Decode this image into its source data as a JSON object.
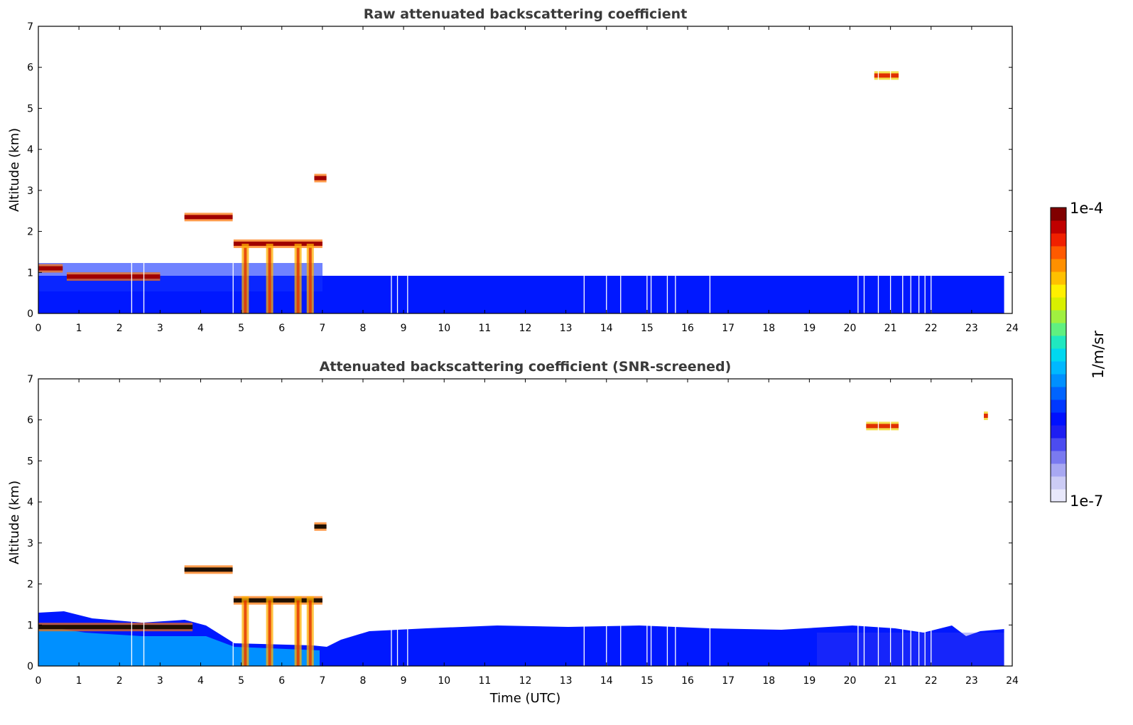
{
  "chart_data": [
    {
      "type": "heatmap",
      "title": "Raw attenuated backscattering coefficient",
      "xlabel": "",
      "ylabel": "Altitude (km)",
      "xlim": [
        0,
        24
      ],
      "ylim": [
        0,
        7
      ],
      "xticks": [
        "0",
        "1",
        "2",
        "3",
        "4",
        "5",
        "6",
        "7",
        "8",
        "9",
        "10",
        "11",
        "12",
        "13",
        "14",
        "15",
        "16",
        "17",
        "18",
        "19",
        "20",
        "21",
        "22",
        "23",
        "24"
      ],
      "yticks": [
        "0",
        "1",
        "2",
        "3",
        "4",
        "5",
        "6",
        "7"
      ],
      "data_end_time": 23.8,
      "features": [
        {
          "kind": "boundary_layer",
          "time_range": [
            0,
            23.8
          ],
          "top_km": 0.9,
          "value": "~3e-7"
        },
        {
          "kind": "cloud_layer",
          "time_range": [
            0,
            0.6
          ],
          "altitude_km": 1.1,
          "value": "~1e-4"
        },
        {
          "kind": "cloud_layer",
          "time_range": [
            0.7,
            3.0
          ],
          "altitude_km": 0.9,
          "value": "~1e-4"
        },
        {
          "kind": "cloud_layer",
          "time_range": [
            3.6,
            4.8
          ],
          "altitude_km": 2.35,
          "value": "~1e-4"
        },
        {
          "kind": "cloud_layer",
          "time_range": [
            4.8,
            7.0
          ],
          "altitude_km": 1.7,
          "value": "~1e-4"
        },
        {
          "kind": "cloud_layer",
          "time_range": [
            6.8,
            7.1
          ],
          "altitude_km": 3.3,
          "value": "~1e-4"
        },
        {
          "kind": "cloud_layer",
          "time_range": [
            20.6,
            21.2
          ],
          "altitude_km": 5.8,
          "value": "~5e-5"
        }
      ]
    },
    {
      "type": "heatmap",
      "title": "Attenuated backscattering coefficient (SNR-screened)",
      "xlabel": "Time (UTC)",
      "ylabel": "Altitude (km)",
      "xlim": [
        0,
        24
      ],
      "ylim": [
        0,
        7
      ],
      "xticks": [
        "0",
        "1",
        "2",
        "3",
        "4",
        "5",
        "6",
        "7",
        "8",
        "9",
        "10",
        "11",
        "12",
        "13",
        "14",
        "15",
        "16",
        "17",
        "18",
        "19",
        "20",
        "21",
        "22",
        "23",
        "24"
      ],
      "yticks": [
        "0",
        "1",
        "2",
        "3",
        "4",
        "5",
        "6",
        "7"
      ],
      "data_end_time": 23.8,
      "features": [
        {
          "kind": "boundary_layer",
          "time_range": [
            0,
            23.8
          ],
          "top_km": 0.85,
          "value": "~3e-7"
        },
        {
          "kind": "cloud_layer",
          "time_range": [
            0,
            3.8
          ],
          "altitude_km": 0.95,
          "value": "~1e-4"
        },
        {
          "kind": "cloud_layer",
          "time_range": [
            3.6,
            4.8
          ],
          "altitude_km": 2.35,
          "value": "~1e-4"
        },
        {
          "kind": "cloud_layer",
          "time_range": [
            4.8,
            7.0
          ],
          "altitude_km": 1.6,
          "value": "~1e-4"
        },
        {
          "kind": "cloud_layer",
          "time_range": [
            6.8,
            7.1
          ],
          "altitude_km": 3.4,
          "value": "~1e-4"
        },
        {
          "kind": "cloud_layer",
          "time_range": [
            20.4,
            21.2
          ],
          "altitude_km": 5.85,
          "value": "~5e-5"
        },
        {
          "kind": "cloud_layer",
          "time_range": [
            23.3,
            23.4
          ],
          "altitude_km": 6.1,
          "value": "~2e-5"
        }
      ]
    }
  ],
  "colorbar": {
    "label": "1/m/sr",
    "min_label": "1e-7",
    "max_label": "1e-4",
    "scale": "log",
    "colors": [
      "#e8e8fb",
      "#ccccf5",
      "#a8a8f2",
      "#7a7af0",
      "#4c4cf0",
      "#1e1ef2",
      "#0010ff",
      "#0038ff",
      "#0064ff",
      "#0090ff",
      "#00b8ff",
      "#00d8f0",
      "#20e8c0",
      "#60f080",
      "#a0f040",
      "#d8f000",
      "#fff000",
      "#ffc000",
      "#ff9000",
      "#ff5a00",
      "#f02000",
      "#c00000",
      "#800000"
    ]
  }
}
